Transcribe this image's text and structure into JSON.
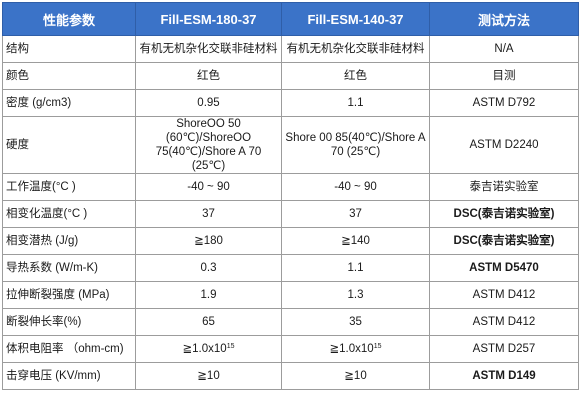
{
  "header": {
    "col0": "性能参数",
    "col1": "Fill-ESM-180-37",
    "col2": "Fill-ESM-140-37",
    "col3": "测试方法"
  },
  "rows": [
    {
      "name": "结构",
      "v1": "有机无机杂化交联非硅材料",
      "v2": "有机无机杂化交联非硅材料",
      "method": "N/A"
    },
    {
      "name": "颜色",
      "v1": "红色",
      "v2": "红色",
      "method": "目测"
    },
    {
      "name": "密度 (g/cm3)",
      "v1": "0.95",
      "v2": "1.1",
      "method": "ASTM D792"
    },
    {
      "name": "硬度",
      "v1_line1": "ShoreOO 50 (60℃)/ShoreOO",
      "v1_line2": "75(40℃)/Shore A 70 (25℃)",
      "v2": "Shore 00 85(40℃)/Shore A 70 (25℃)",
      "method": "ASTM D2240"
    },
    {
      "name": "工作温度(°C )",
      "v1": "-40 ~ 90",
      "v2": "-40 ~ 90",
      "method": "泰吉诺实验室"
    },
    {
      "name": "相变化温度(°C )",
      "v1": "37",
      "v2": "37",
      "method": "DSC(泰吉诺实验室)"
    },
    {
      "name": "相变潜热 (J/g)",
      "v1": "≧180",
      "v2": "≧140",
      "method": "DSC(泰吉诺实验室)"
    },
    {
      "name": "导热系数 (W/m-K)",
      "v1": "0.3",
      "v2": "1.1",
      "method": "ASTM D5470"
    },
    {
      "name": "拉伸断裂强度 (MPa)",
      "v1": "1.9",
      "v2": "1.3",
      "method": "ASTM D412"
    },
    {
      "name": "断裂伸长率(%)",
      "v1": "65",
      "v2": "35",
      "method": "ASTM D412"
    },
    {
      "name": "体积电阻率 （ohm-cm)",
      "v1_base": "≧1.0x10",
      "v1_exp": "15",
      "v2_base": "≧1.0x10",
      "v2_exp": "15",
      "method": "ASTM D257"
    },
    {
      "name": "击穿电压 (KV/mm)",
      "v1": "≧10",
      "v2": "≧10",
      "method": "ASTM D149"
    }
  ]
}
